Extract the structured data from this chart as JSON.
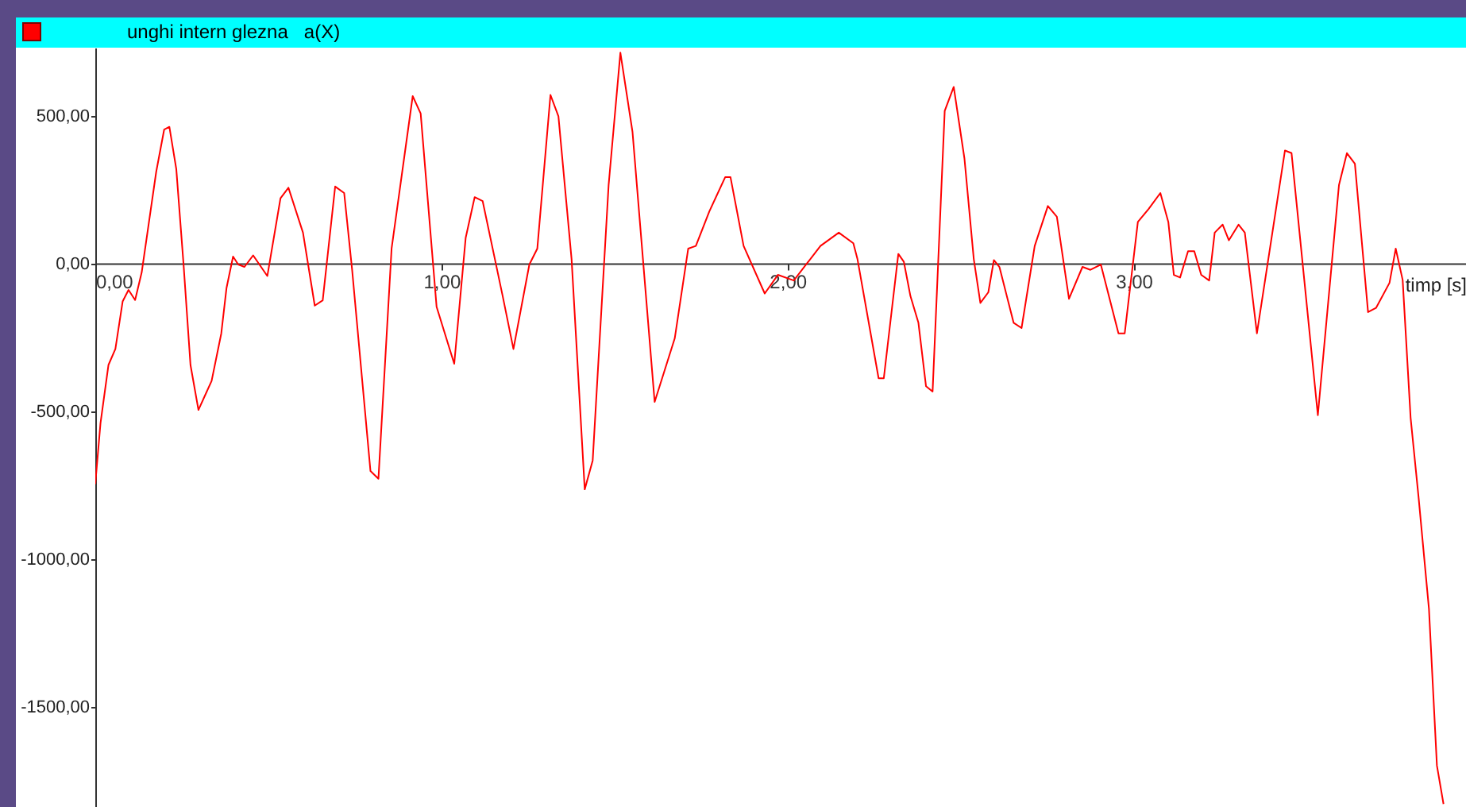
{
  "chart_data": {
    "type": "line",
    "title": "unghi intern glezna   a(X)",
    "xlabel": "timp [s]",
    "xlim": [
      0,
      3.96
    ],
    "ylim": [
      -1840,
      730
    ],
    "xticks": [
      {
        "value": 0,
        "label": "0,00"
      },
      {
        "value": 1,
        "label": "1,00"
      },
      {
        "value": 2,
        "label": "2,00"
      },
      {
        "value": 3,
        "label": "3,00"
      }
    ],
    "yticks": [
      {
        "value": 500,
        "label": "500,00"
      },
      {
        "value": 0,
        "label": "0,00"
      },
      {
        "value": -500,
        "label": "-500,00"
      },
      {
        "value": -1000,
        "label": "-1000,00"
      },
      {
        "value": -1500,
        "label": "-1500,00"
      }
    ],
    "grid": false,
    "marker": "none",
    "line_style": "solid",
    "series": [
      {
        "color": "#ff0000",
        "x": [
          0,
          0.015,
          0.038,
          0.058,
          0.079,
          0.096,
          0.115,
          0.134,
          0.176,
          0.199,
          0.214,
          0.234,
          0.255,
          0.275,
          0.298,
          0.336,
          0.364,
          0.379,
          0.398,
          0.413,
          0.431,
          0.456,
          0.497,
          0.535,
          0.558,
          0.6,
          0.634,
          0.657,
          0.693,
          0.719,
          0.742,
          0.795,
          0.818,
          0.856,
          0.917,
          0.94,
          0.986,
          1.037,
          1.07,
          1.096,
          1.119,
          1.177,
          1.208,
          1.254,
          1.277,
          1.315,
          1.338,
          1.376,
          1.414,
          1.437,
          1.483,
          1.517,
          1.552,
          1.616,
          1.674,
          1.713,
          1.735,
          1.774,
          1.82,
          1.835,
          1.873,
          1.934,
          1.972,
          2.018,
          2.095,
          2.148,
          2.19,
          2.202,
          2.263,
          2.278,
          2.32,
          2.336,
          2.355,
          2.378,
          2.4,
          2.419,
          2.454,
          2.48,
          2.511,
          2.538,
          2.557,
          2.58,
          2.596,
          2.612,
          2.653,
          2.676,
          2.714,
          2.752,
          2.778,
          2.813,
          2.852,
          2.875,
          2.905,
          2.956,
          2.974,
          3.012,
          3.043,
          3.077,
          3.1,
          3.116,
          3.134,
          3.157,
          3.175,
          3.195,
          3.218,
          3.234,
          3.257,
          3.275,
          3.303,
          3.321,
          3.356,
          3.437,
          3.456,
          3.532,
          3.593,
          3.616,
          3.639,
          3.677,
          3.7,
          3.739,
          3.757,
          3.777,
          3.8,
          3.823,
          3.853,
          3.876,
          3.895
        ],
        "values": [
          -747,
          -541,
          -344,
          -290,
          -129,
          -90,
          -124,
          -31,
          310,
          453,
          462,
          319,
          -4,
          -344,
          -496,
          -398,
          -237,
          -84,
          23,
          -4,
          -12,
          27,
          -43,
          220,
          256,
          104,
          -143,
          -125,
          260,
          238,
          -22,
          -703,
          -729,
          50,
          566,
          507,
          -147,
          -340,
          86,
          224,
          211,
          -111,
          -290,
          -4,
          50,
          570,
          498,
          14,
          -765,
          -667,
          265,
          713,
          445,
          -469,
          -254,
          50,
          59,
          176,
          292,
          292,
          59,
          -102,
          -39,
          -58,
          59,
          104,
          68,
          14,
          -389,
          -389,
          32,
          5,
          -111,
          -201,
          -416,
          -434,
          516,
          597,
          355,
          14,
          -134,
          -98,
          11,
          -12,
          -201,
          -219,
          59,
          194,
          158,
          -120,
          -12,
          -22,
          -4,
          -237,
          -237,
          140,
          184,
          238,
          140,
          -39,
          -48,
          41,
          41,
          -39,
          -58,
          104,
          131,
          78,
          131,
          104,
          -237,
          382,
          373,
          -514,
          265,
          373,
          337,
          -165,
          -151,
          -66,
          50,
          -56,
          -523,
          -792,
          -1170,
          -1700,
          -1830
        ]
      }
    ]
  }
}
